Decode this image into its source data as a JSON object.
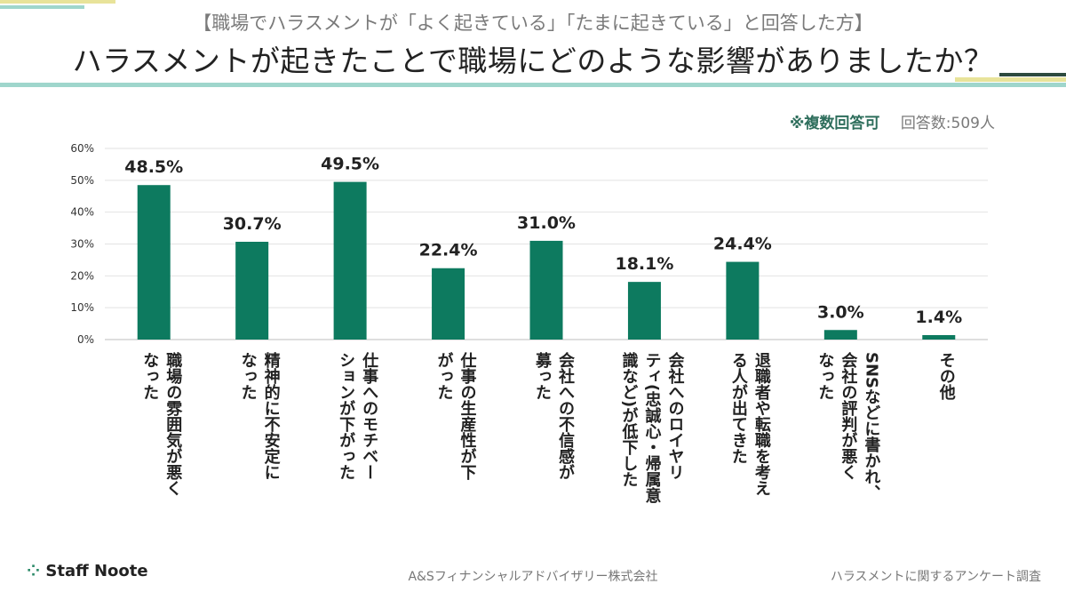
{
  "header": {
    "subtitle": "【職場でハラスメントが「よく起きている」「たまに起きている」と回答した方】",
    "title": "ハラスメントが起きたことで職場にどのような影響がありましたか？"
  },
  "note": {
    "multiple": "※複数回答可",
    "respondents": "回答数:509人"
  },
  "colors": {
    "bar": "#0d7a5f",
    "accent_yellow": "#e8e39a",
    "accent_teal": "#9fd6cc",
    "accent_dark": "#2d4a3e"
  },
  "chart_data": {
    "type": "bar",
    "categories": [
      "職場の雰囲気が悪く\nなった",
      "精神的に不安定に\nなった",
      "仕事へのモチベー\nションが下がった",
      "仕事の生産性が下\nがった",
      "会社への不信感が\n募った",
      "会社へのロイヤリ\nティ(忠誠心・帰属意\n識など)が低下した",
      "退職者や転職を考え\nる人が出てきた",
      "SNSなどに書かれ、\n会社の評判が悪く\nなった",
      "その他"
    ],
    "values": [
      48.5,
      30.7,
      49.5,
      22.4,
      31.0,
      18.1,
      24.4,
      3.0,
      1.4
    ],
    "value_labels": [
      "48.5%",
      "30.7%",
      "49.5%",
      "22.4%",
      "31.0%",
      "18.1%",
      "24.4%",
      "3.0%",
      "1.4%"
    ],
    "y_ticks": [
      "0%",
      "10%",
      "20%",
      "30%",
      "40%",
      "50%",
      "60%"
    ],
    "ylim": [
      0,
      60
    ],
    "grid": true
  },
  "footer": {
    "logo": "Staff Noote",
    "company": "A&Sフィナンシャルアドバイザリー株式会社",
    "survey": "ハラスメントに関するアンケート調査"
  }
}
